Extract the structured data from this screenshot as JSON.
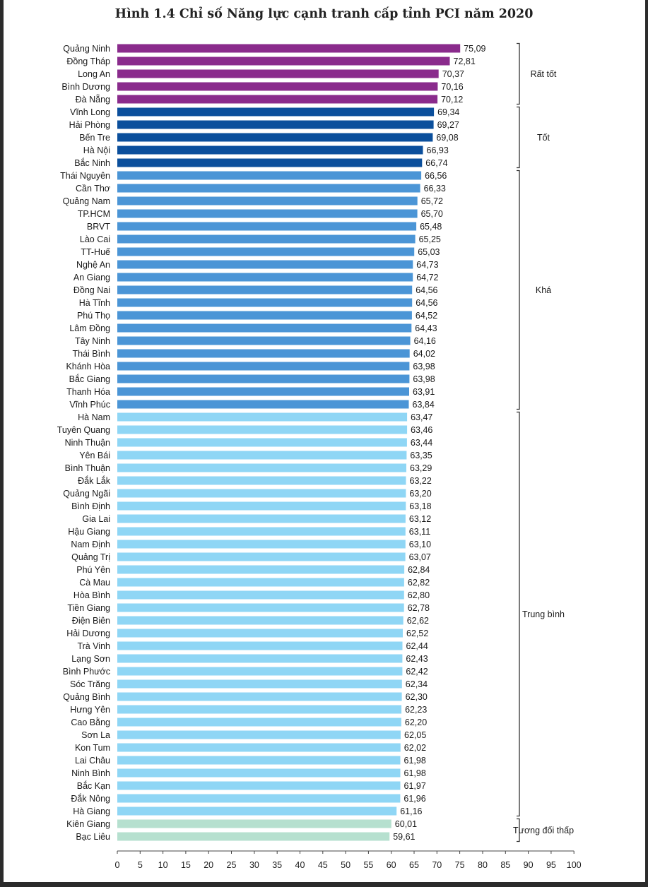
{
  "chart_data": {
    "type": "bar",
    "orientation": "horizontal",
    "title": "Hình 1.4 Chỉ số Năng lực cạnh tranh cấp tỉnh PCI năm 2020",
    "xlim": [
      0,
      100
    ],
    "xticks": [
      0,
      5,
      10,
      15,
      20,
      25,
      30,
      35,
      40,
      45,
      50,
      55,
      60,
      65,
      70,
      75,
      80,
      85,
      90,
      95,
      100
    ],
    "groups": [
      {
        "label": "Rất tốt",
        "color": "#8a2b8c",
        "items": [
          {
            "name": "Quảng Ninh",
            "value": 75.09,
            "label": "75,09"
          },
          {
            "name": "Đồng Tháp",
            "value": 72.81,
            "label": "72,81"
          },
          {
            "name": "Long An",
            "value": 70.37,
            "label": "70,37"
          },
          {
            "name": "Bình Dương",
            "value": 70.16,
            "label": "70,16"
          },
          {
            "name": "Đà Nẵng",
            "value": 70.12,
            "label": "70,12"
          }
        ]
      },
      {
        "label": "Tốt",
        "color": "#0b4f9c",
        "items": [
          {
            "name": "Vĩnh Long",
            "value": 69.34,
            "label": "69,34"
          },
          {
            "name": "Hải Phòng",
            "value": 69.27,
            "label": "69,27"
          },
          {
            "name": "Bến Tre",
            "value": 69.08,
            "label": "69,08"
          },
          {
            "name": "Hà Nội",
            "value": 66.93,
            "label": "66,93"
          },
          {
            "name": "Bắc Ninh",
            "value": 66.74,
            "label": "66,74"
          }
        ]
      },
      {
        "label": "Khá",
        "color": "#4b95d6",
        "items": [
          {
            "name": "Thái Nguyên",
            "value": 66.56,
            "label": "66,56"
          },
          {
            "name": "Cần Thơ",
            "value": 66.33,
            "label": "66,33"
          },
          {
            "name": "Quảng Nam",
            "value": 65.72,
            "label": "65,72"
          },
          {
            "name": "TP.HCM",
            "value": 65.7,
            "label": "65,70"
          },
          {
            "name": "BRVT",
            "value": 65.48,
            "label": "65,48"
          },
          {
            "name": "Lào Cai",
            "value": 65.25,
            "label": "65,25"
          },
          {
            "name": "TT-Huế",
            "value": 65.03,
            "label": "65,03"
          },
          {
            "name": "Nghệ An",
            "value": 64.73,
            "label": "64,73"
          },
          {
            "name": "An Giang",
            "value": 64.72,
            "label": "64,72"
          },
          {
            "name": "Đồng Nai",
            "value": 64.56,
            "label": "64,56"
          },
          {
            "name": "Hà Tĩnh",
            "value": 64.56,
            "label": "64,56"
          },
          {
            "name": "Phú Thọ",
            "value": 64.52,
            "label": "64,52"
          },
          {
            "name": "Lâm Đồng",
            "value": 64.43,
            "label": "64,43"
          },
          {
            "name": "Tây Ninh",
            "value": 64.16,
            "label": "64,16"
          },
          {
            "name": "Thái Bình",
            "value": 64.02,
            "label": "64,02"
          },
          {
            "name": "Khánh Hòa",
            "value": 63.98,
            "label": "63,98"
          },
          {
            "name": "Bắc Giang",
            "value": 63.98,
            "label": "63,98"
          },
          {
            "name": "Thanh Hóa",
            "value": 63.91,
            "label": "63,91"
          },
          {
            "name": "Vĩnh Phúc",
            "value": 63.84,
            "label": "63,84"
          }
        ]
      },
      {
        "label": "Trung bình",
        "color": "#8fd6f5",
        "items": [
          {
            "name": "Hà Nam",
            "value": 63.47,
            "label": "63,47"
          },
          {
            "name": "Tuyên Quang",
            "value": 63.46,
            "label": "63,46"
          },
          {
            "name": "Ninh Thuận",
            "value": 63.44,
            "label": "63,44"
          },
          {
            "name": "Yên Bái",
            "value": 63.35,
            "label": "63,35"
          },
          {
            "name": "Bình Thuận",
            "value": 63.29,
            "label": "63,29"
          },
          {
            "name": "Đắk Lắk",
            "value": 63.22,
            "label": "63,22"
          },
          {
            "name": "Quảng Ngãi",
            "value": 63.2,
            "label": "63,20"
          },
          {
            "name": "Bình Định",
            "value": 63.18,
            "label": "63,18"
          },
          {
            "name": "Gia Lai",
            "value": 63.12,
            "label": "63,12"
          },
          {
            "name": "Hậu Giang",
            "value": 63.11,
            "label": "63,11"
          },
          {
            "name": "Nam Định",
            "value": 63.1,
            "label": "63,10"
          },
          {
            "name": "Quảng Trị",
            "value": 63.07,
            "label": "63,07"
          },
          {
            "name": "Phú Yên",
            "value": 62.84,
            "label": "62,84"
          },
          {
            "name": "Cà Mau",
            "value": 62.82,
            "label": "62,82"
          },
          {
            "name": "Hòa Bình",
            "value": 62.8,
            "label": "62,80"
          },
          {
            "name": "Tiền Giang",
            "value": 62.78,
            "label": "62,78"
          },
          {
            "name": "Điện Biên",
            "value": 62.62,
            "label": "62,62"
          },
          {
            "name": "Hải Dương",
            "value": 62.52,
            "label": "62,52"
          },
          {
            "name": "Trà Vinh",
            "value": 62.44,
            "label": "62,44"
          },
          {
            "name": "Lạng Sơn",
            "value": 62.43,
            "label": "62,43"
          },
          {
            "name": "Bình Phước",
            "value": 62.42,
            "label": "62,42"
          },
          {
            "name": "Sóc Trăng",
            "value": 62.34,
            "label": "62,34"
          },
          {
            "name": "Quảng Bình",
            "value": 62.3,
            "label": "62,30"
          },
          {
            "name": "Hưng Yên",
            "value": 62.23,
            "label": "62,23"
          },
          {
            "name": "Cao Bằng",
            "value": 62.2,
            "label": "62,20"
          },
          {
            "name": "Sơn La",
            "value": 62.05,
            "label": "62,05"
          },
          {
            "name": "Kon Tum",
            "value": 62.02,
            "label": "62,02"
          },
          {
            "name": "Lai Châu",
            "value": 61.98,
            "label": "61,98"
          },
          {
            "name": "Ninh Bình",
            "value": 61.98,
            "label": "61,98"
          },
          {
            "name": "Bắc Kạn",
            "value": 61.97,
            "label": "61,97"
          },
          {
            "name": "Đắk Nông",
            "value": 61.96,
            "label": "61,96"
          },
          {
            "name": "Hà Giang",
            "value": 61.16,
            "label": "61,16"
          }
        ]
      },
      {
        "label": "Tương đối thấp",
        "color": "#b6e0cf",
        "items": [
          {
            "name": "Kiên Giang",
            "value": 60.01,
            "label": "60,01"
          },
          {
            "name": "Bạc Liêu",
            "value": 59.61,
            "label": "59,61"
          }
        ]
      }
    ]
  }
}
